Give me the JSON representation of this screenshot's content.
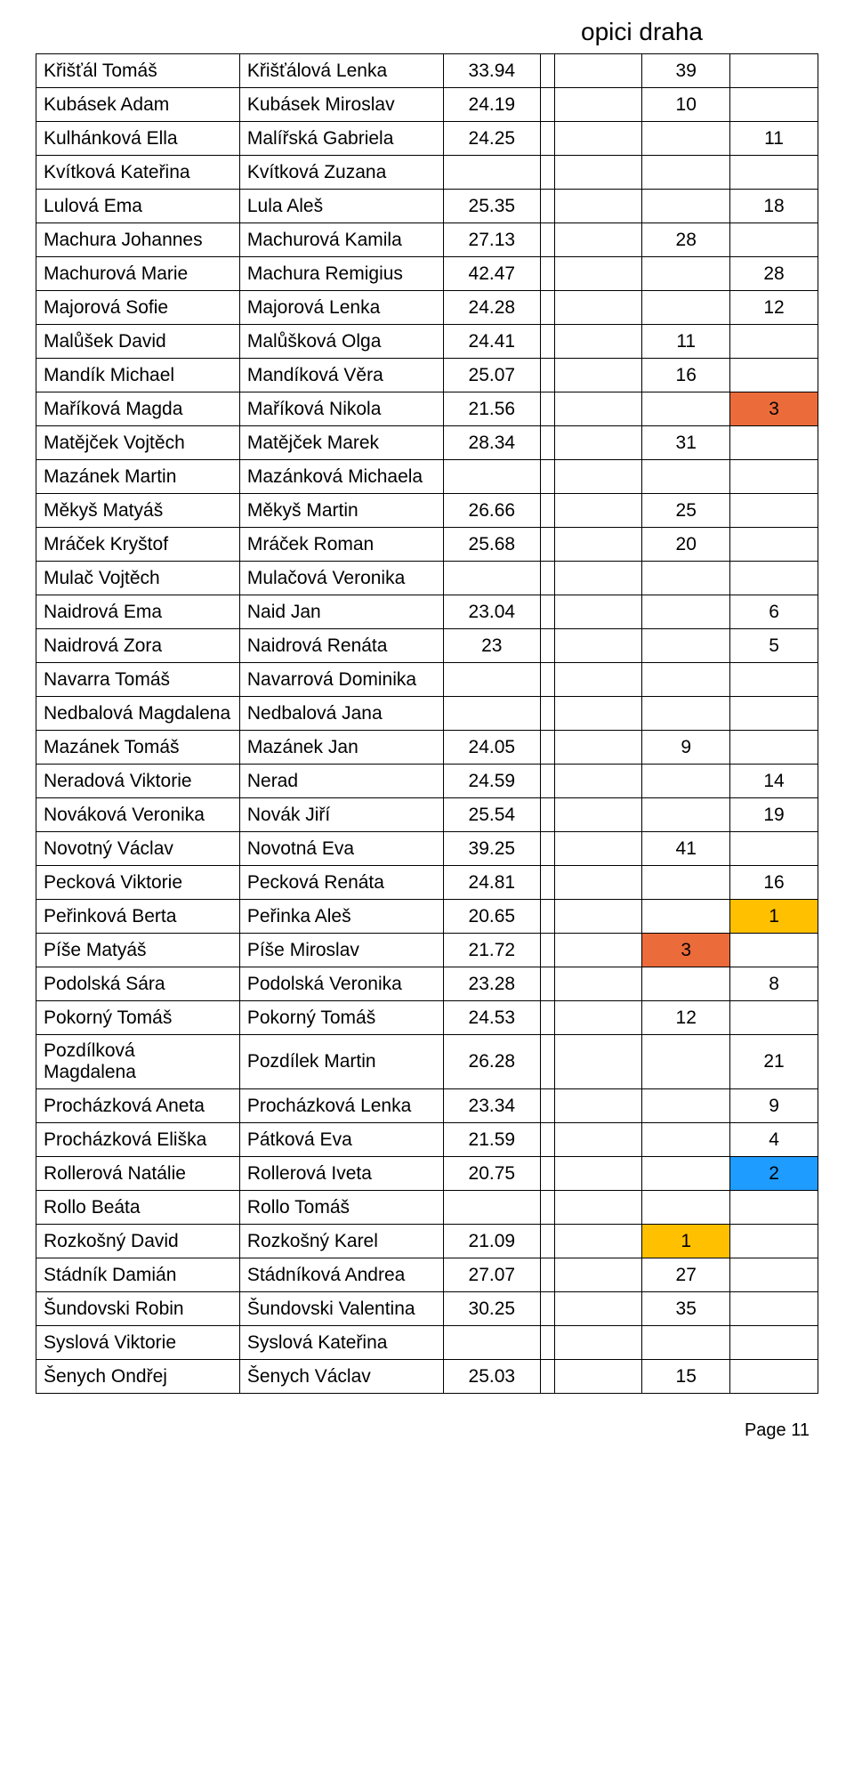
{
  "title": "opici draha",
  "footer": "Page 11",
  "colors": {
    "orange": "#eb6b3a",
    "yellow": "#ffc000",
    "blue": "#1f9cff",
    "white": "#ffffff",
    "black": "#000000"
  },
  "rows": [
    {
      "n1": "Křišťál Tomáš",
      "n2": "Křišťálová Lenka",
      "v": "33.94",
      "a": "",
      "b": "39",
      "c": ""
    },
    {
      "n1": "Kubásek Adam",
      "n2": "Kubásek Miroslav",
      "v": "24.19",
      "a": "",
      "b": "10",
      "c": ""
    },
    {
      "n1": "Kulhánková Ella",
      "n2": "Malířská Gabriela",
      "v": "24.25",
      "a": "",
      "b": "",
      "c": "11"
    },
    {
      "n1": "Kvítková Kateřina",
      "n2": "Kvítková Zuzana",
      "v": "",
      "a": "",
      "b": "",
      "c": ""
    },
    {
      "n1": "Lulová Ema",
      "n2": "Lula Aleš",
      "v": "25.35",
      "a": "",
      "b": "",
      "c": "18"
    },
    {
      "n1": "Machura Johannes",
      "n2": "Machurová Kamila",
      "v": "27.13",
      "a": "",
      "b": "28",
      "c": ""
    },
    {
      "n1": "Machurová Marie",
      "n2": "Machura Remigius",
      "v": "42.47",
      "a": "",
      "b": "",
      "c": "28"
    },
    {
      "n1": "Majorová Sofie",
      "n2": "Majorová Lenka",
      "v": "24.28",
      "a": "",
      "b": "",
      "c": "12"
    },
    {
      "n1": "Malůšek David",
      "n2": "Malůšková Olga",
      "v": "24.41",
      "a": "",
      "b": "11",
      "c": ""
    },
    {
      "n1": "Mandík Michael",
      "n2": "Mandíková Věra",
      "v": "25.07",
      "a": "",
      "b": "16",
      "c": ""
    },
    {
      "n1": "Maříková Magda",
      "n2": "Maříková Nikola",
      "v": "21.56",
      "a": "",
      "b": "",
      "c": "3",
      "c_bg": "orange"
    },
    {
      "n1": "Matějček Vojtěch",
      "n2": "Matějček Marek",
      "v": "28.34",
      "a": "",
      "b": "31",
      "c": ""
    },
    {
      "n1": "Mazánek Martin",
      "n2": "Mazánková Michaela",
      "v": "",
      "a": "",
      "b": "",
      "c": ""
    },
    {
      "n1": "Měkyš Matyáš",
      "n2": "Měkyš Martin",
      "v": "26.66",
      "a": "",
      "b": "25",
      "c": ""
    },
    {
      "n1": "Mráček Kryštof",
      "n2": "Mráček Roman",
      "v": "25.68",
      "a": "",
      "b": "20",
      "c": ""
    },
    {
      "n1": "Mulač Vojtěch",
      "n2": "Mulačová Veronika",
      "v": "",
      "a": "",
      "b": "",
      "c": ""
    },
    {
      "n1": "Naidrová Ema",
      "n2": "Naid Jan",
      "v": "23.04",
      "a": "",
      "b": "",
      "c": "6"
    },
    {
      "n1": "Naidrová Zora",
      "n2": "Naidrová Renáta",
      "v": "23",
      "a": "",
      "b": "",
      "c": "5"
    },
    {
      "n1": "Navarra Tomáš",
      "n2": "Navarrová Dominika",
      "v": "",
      "a": "",
      "b": "",
      "c": ""
    },
    {
      "n1": "Nedbalová Magdalena",
      "n2": "Nedbalová Jana",
      "v": "",
      "a": "",
      "b": "",
      "c": ""
    },
    {
      "n1": "Mazánek Tomáš",
      "n2": "Mazánek Jan",
      "v": "24.05",
      "a": "",
      "b": "9",
      "c": ""
    },
    {
      "n1": "Neradová Viktorie",
      "n2": "Nerad",
      "v": "24.59",
      "a": "",
      "b": "",
      "c": "14"
    },
    {
      "n1": "Nováková Veronika",
      "n2": "Novák Jiří",
      "v": "25.54",
      "a": "",
      "b": "",
      "c": "19"
    },
    {
      "n1": "Novotný Václav",
      "n2": "Novotná Eva",
      "v": "39.25",
      "a": "",
      "b": "41",
      "c": ""
    },
    {
      "n1": "Pecková Viktorie",
      "n2": "Pecková Renáta",
      "v": "24.81",
      "a": "",
      "b": "",
      "c": "16"
    },
    {
      "n1": "Peřinková Berta",
      "n2": "Peřinka Aleš",
      "v": "20.65",
      "a": "",
      "b": "",
      "c": "1",
      "c_bg": "yellow"
    },
    {
      "n1": "Píše Matyáš",
      "n2": "Píše Miroslav",
      "v": "21.72",
      "a": "",
      "b": "3",
      "c": "",
      "b_bg": "orange"
    },
    {
      "n1": "Podolská Sára",
      "n2": "Podolská Veronika",
      "v": "23.28",
      "a": "",
      "b": "",
      "c": "8"
    },
    {
      "n1": "Pokorný Tomáš",
      "n2": "Pokorný Tomáš",
      "v": "24.53",
      "a": "",
      "b": "12",
      "c": ""
    },
    {
      "n1": "Pozdílková Magdalena",
      "n2": "Pozdílek Martin",
      "v": "26.28",
      "a": "",
      "b": "",
      "c": "21"
    },
    {
      "n1": "Procházková Aneta",
      "n2": "Procházková Lenka",
      "v": "23.34",
      "a": "",
      "b": "",
      "c": "9"
    },
    {
      "n1": "Procházková Eliška",
      "n2": "Pátková Eva",
      "v": "21.59",
      "a": "",
      "b": "",
      "c": "4"
    },
    {
      "n1": "Rollerová Natálie",
      "n2": "Rollerová Iveta",
      "v": "20.75",
      "a": "",
      "b": "",
      "c": "2",
      "c_bg": "blue"
    },
    {
      "n1": "Rollo Beáta",
      "n2": "Rollo Tomáš",
      "v": "",
      "a": "",
      "b": "",
      "c": ""
    },
    {
      "n1": "Rozkošný David",
      "n2": "Rozkošný Karel",
      "v": "21.09",
      "a": "",
      "b": "1",
      "c": "",
      "b_bg": "yellow"
    },
    {
      "n1": "Stádník Damián",
      "n2": "Stádníková Andrea",
      "v": "27.07",
      "a": "",
      "b": "27",
      "c": ""
    },
    {
      "n1": "Šundovski Robin",
      "n2": "Šundovski Valentina",
      "v": "30.25",
      "a": "",
      "b": "35",
      "c": ""
    },
    {
      "n1": "Syslová Viktorie",
      "n2": "Syslová Kateřina",
      "v": "",
      "a": "",
      "b": "",
      "c": ""
    },
    {
      "n1": "Šenych Ondřej",
      "n2": "Šenych Václav",
      "v": "25.03",
      "a": "",
      "b": "15",
      "c": ""
    }
  ]
}
